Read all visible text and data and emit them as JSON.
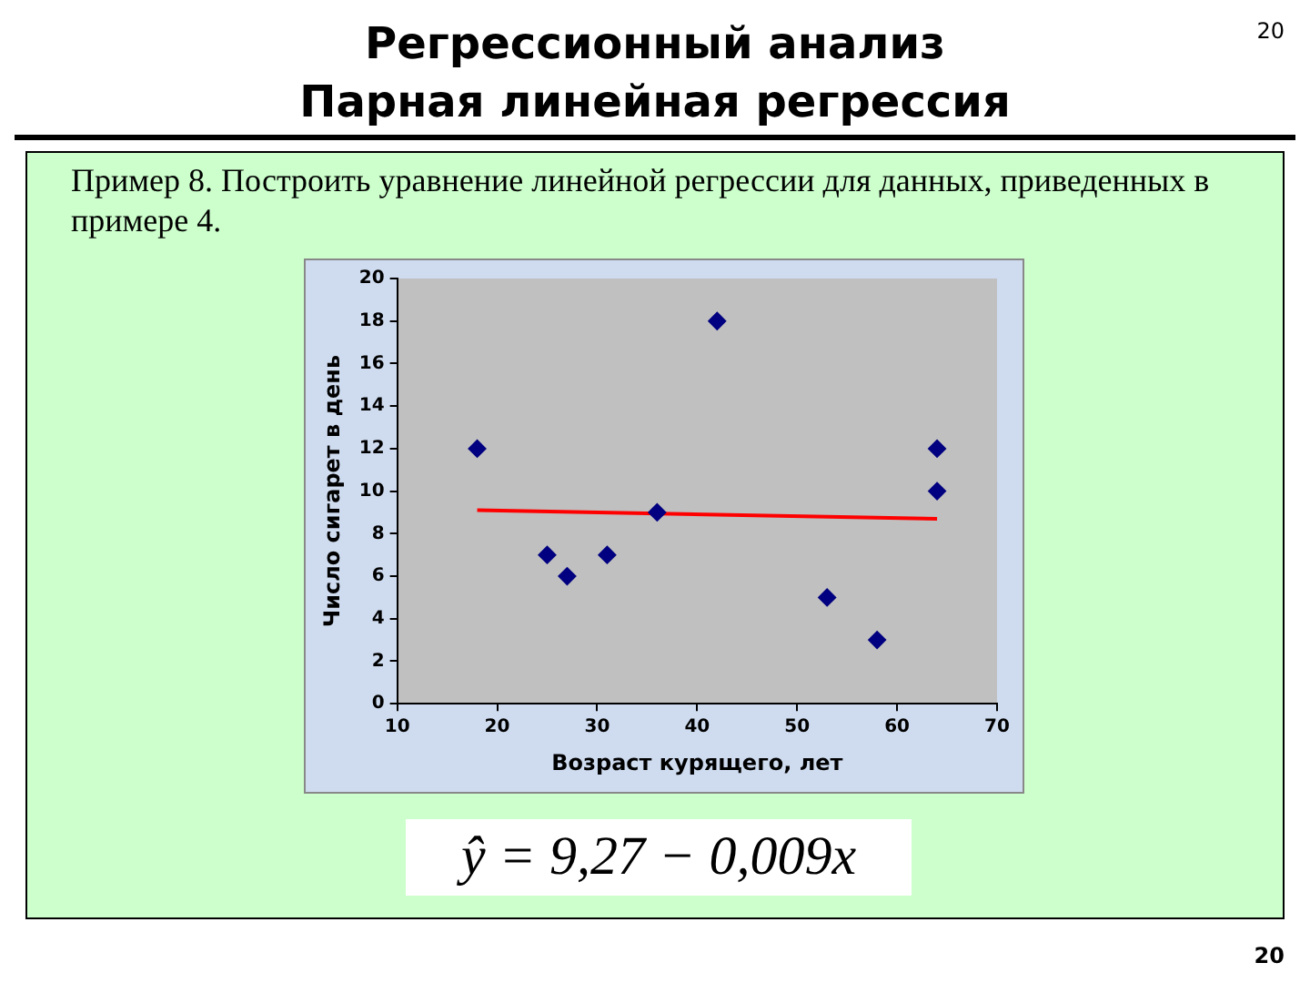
{
  "chart_data": {
    "type": "scatter",
    "title": "Регрессионный анализ",
    "subtitle": "Парная линейная регрессия",
    "xlabel": "Возраст курящего, лет",
    "ylabel": "Число сигарет в день",
    "annotations": [
      "20",
      "Пример 8. Построить уравнение линейной регрессии для данных, приведенных в примере 4.",
      "ŷ = 9,27 − 0,009x",
      "20"
    ],
    "series": [
      {
        "color": "#000080",
        "marker": "diamond",
        "x": [
          18,
          25,
          27,
          31,
          36,
          42,
          53,
          58,
          64,
          64
        ],
        "values": [
          12,
          7,
          6,
          7,
          9,
          18,
          5,
          3,
          12,
          10
        ]
      },
      {
        "type": "line",
        "color": "#ff0000",
        "marker": "none",
        "x": [
          18,
          64
        ],
        "values": [
          9.1,
          8.7
        ]
      }
    ],
    "xlim": [
      10,
      70
    ],
    "xticks": [
      10,
      20,
      30,
      40,
      50,
      60,
      70
    ],
    "ylim": [
      0,
      20
    ],
    "yticks": [
      0,
      2,
      4,
      6,
      8,
      10,
      12,
      14,
      16,
      18,
      20
    ],
    "grid": false,
    "legend": false
  }
}
